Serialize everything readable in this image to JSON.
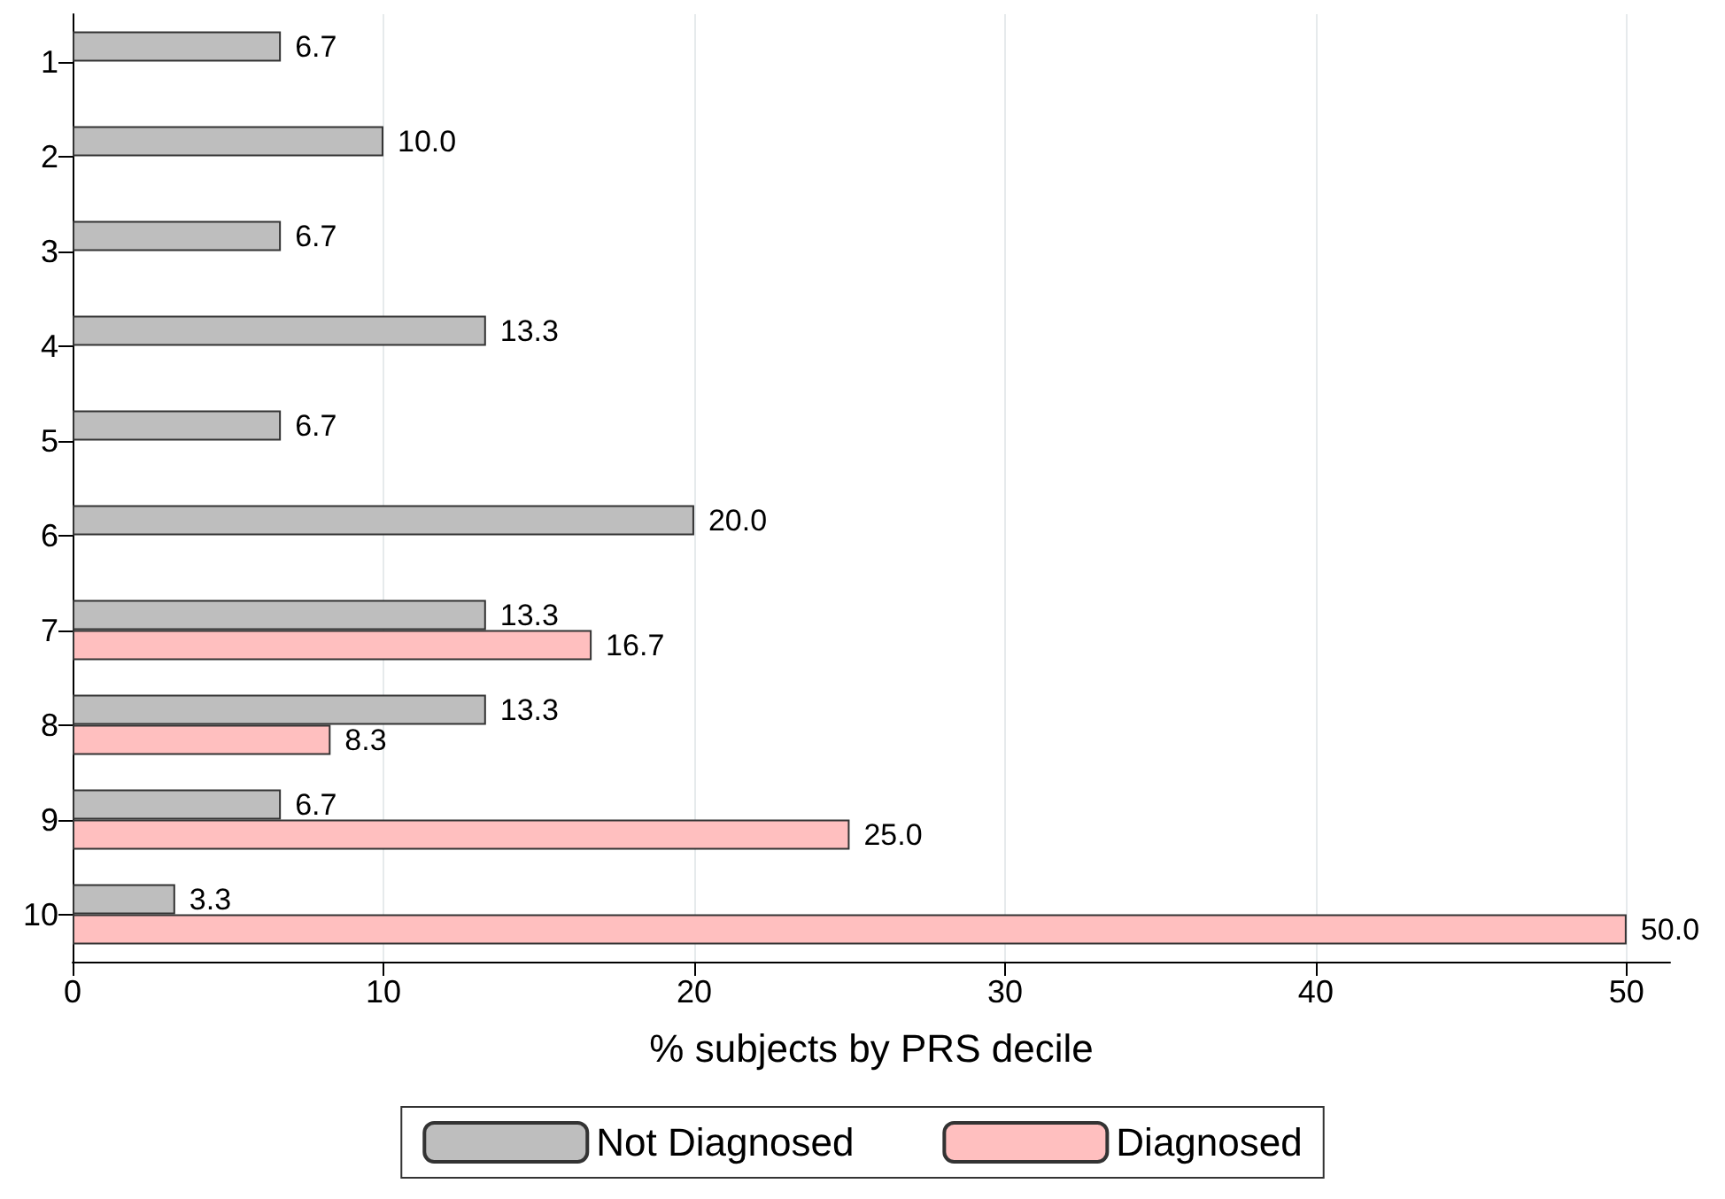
{
  "chart_data": {
    "type": "bar",
    "orientation": "horizontal",
    "xlabel": "% subjects by PRS decile",
    "categories": [
      "1",
      "2",
      "3",
      "4",
      "5",
      "6",
      "7",
      "8",
      "9",
      "10"
    ],
    "series": [
      {
        "name": "Not Diagnosed",
        "color": "#bebebe",
        "values": [
          6.7,
          10.0,
          6.7,
          13.3,
          6.7,
          20.0,
          13.3,
          13.3,
          6.7,
          3.3
        ],
        "value_labels": [
          "6.7",
          "10.0",
          "6.7",
          "13.3",
          "6.7",
          "20.0",
          "13.3",
          "13.3",
          "6.7",
          "3.3"
        ]
      },
      {
        "name": "Diagnosed",
        "color": "#ffbfbf",
        "values": [
          null,
          null,
          null,
          null,
          null,
          null,
          16.7,
          8.3,
          25.0,
          50.0
        ],
        "value_labels": [
          null,
          null,
          null,
          null,
          null,
          null,
          "16.7",
          "8.3",
          "25.0",
          "50.0"
        ]
      }
    ],
    "xlim": [
      0,
      51.4
    ],
    "xticks": [
      0,
      10,
      20,
      30,
      40,
      50
    ],
    "grid": "x",
    "legend": "bottom"
  }
}
